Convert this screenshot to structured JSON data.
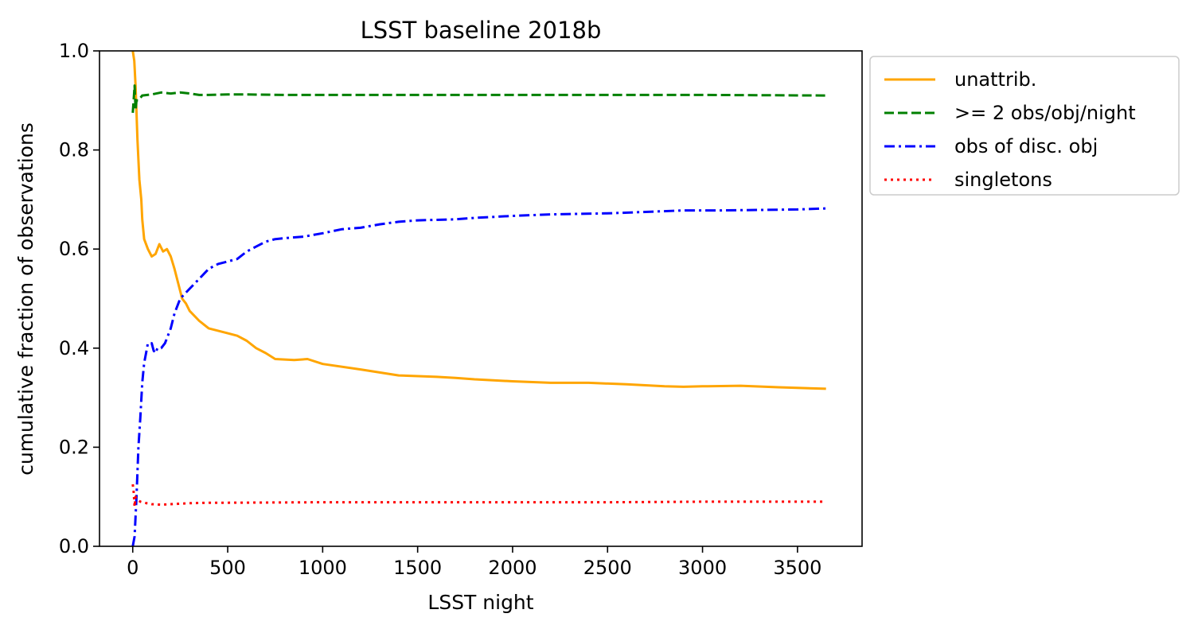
{
  "chart_data": {
    "type": "line",
    "title": "LSST baseline 2018b",
    "xlabel": "LSST night",
    "ylabel": "cumulative fraction of observations",
    "xlim": [
      -175,
      3840
    ],
    "ylim": [
      0.0,
      1.0
    ],
    "xticks": [
      0,
      500,
      1000,
      1500,
      2000,
      2500,
      3000,
      3500
    ],
    "yticks": [
      0.0,
      0.2,
      0.4,
      0.6,
      0.8,
      1.0
    ],
    "xtick_labels": [
      "0",
      "500",
      "1000",
      "1500",
      "2000",
      "2500",
      "3000",
      "3500"
    ],
    "ytick_labels": [
      "0.0",
      "0.2",
      "0.4",
      "0.6",
      "0.8",
      "1.0"
    ],
    "grid": false,
    "legend_position": "outside-top-right",
    "series": [
      {
        "name": "unattrib.",
        "color": "#ffa500",
        "style": "solid",
        "points": [
          [
            0,
            1.0
          ],
          [
            8,
            0.98
          ],
          [
            15,
            0.93
          ],
          [
            25,
            0.82
          ],
          [
            35,
            0.74
          ],
          [
            45,
            0.7
          ],
          [
            50,
            0.66
          ],
          [
            60,
            0.62
          ],
          [
            80,
            0.6
          ],
          [
            100,
            0.585
          ],
          [
            120,
            0.59
          ],
          [
            140,
            0.61
          ],
          [
            160,
            0.595
          ],
          [
            180,
            0.6
          ],
          [
            200,
            0.585
          ],
          [
            220,
            0.56
          ],
          [
            240,
            0.53
          ],
          [
            260,
            0.5
          ],
          [
            280,
            0.49
          ],
          [
            300,
            0.475
          ],
          [
            350,
            0.455
          ],
          [
            400,
            0.44
          ],
          [
            500,
            0.43
          ],
          [
            550,
            0.425
          ],
          [
            600,
            0.415
          ],
          [
            650,
            0.4
          ],
          [
            700,
            0.39
          ],
          [
            750,
            0.378
          ],
          [
            850,
            0.376
          ],
          [
            920,
            0.378
          ],
          [
            1000,
            0.368
          ],
          [
            1200,
            0.357
          ],
          [
            1400,
            0.345
          ],
          [
            1600,
            0.342
          ],
          [
            1700,
            0.34
          ],
          [
            1800,
            0.337
          ],
          [
            2000,
            0.333
          ],
          [
            2200,
            0.33
          ],
          [
            2400,
            0.33
          ],
          [
            2600,
            0.327
          ],
          [
            2800,
            0.323
          ],
          [
            2900,
            0.322
          ],
          [
            3000,
            0.323
          ],
          [
            3200,
            0.324
          ],
          [
            3400,
            0.321
          ],
          [
            3650,
            0.318
          ]
        ]
      },
      {
        "name": ">= 2 obs/obj/night",
        "color": "#008000",
        "style": "dashed",
        "points": [
          [
            0,
            0.875
          ],
          [
            5,
            0.9
          ],
          [
            10,
            0.93
          ],
          [
            15,
            0.88
          ],
          [
            20,
            0.9
          ],
          [
            30,
            0.9
          ],
          [
            50,
            0.91
          ],
          [
            100,
            0.912
          ],
          [
            150,
            0.916
          ],
          [
            200,
            0.914
          ],
          [
            250,
            0.916
          ],
          [
            300,
            0.914
          ],
          [
            350,
            0.911
          ],
          [
            400,
            0.911
          ],
          [
            500,
            0.912
          ],
          [
            600,
            0.912
          ],
          [
            800,
            0.911
          ],
          [
            1000,
            0.911
          ],
          [
            1500,
            0.911
          ],
          [
            2000,
            0.911
          ],
          [
            2500,
            0.911
          ],
          [
            3000,
            0.911
          ],
          [
            3650,
            0.91
          ]
        ]
      },
      {
        "name": "obs of disc. obj",
        "color": "#0000ff",
        "style": "dashdot",
        "points": [
          [
            0,
            0.0
          ],
          [
            10,
            0.02
          ],
          [
            20,
            0.1
          ],
          [
            30,
            0.2
          ],
          [
            40,
            0.26
          ],
          [
            50,
            0.33
          ],
          [
            60,
            0.37
          ],
          [
            70,
            0.39
          ],
          [
            80,
            0.41
          ],
          [
            100,
            0.41
          ],
          [
            110,
            0.395
          ],
          [
            120,
            0.39
          ],
          [
            130,
            0.4
          ],
          [
            150,
            0.4
          ],
          [
            170,
            0.41
          ],
          [
            200,
            0.44
          ],
          [
            220,
            0.47
          ],
          [
            250,
            0.5
          ],
          [
            300,
            0.52
          ],
          [
            350,
            0.54
          ],
          [
            400,
            0.56
          ],
          [
            450,
            0.57
          ],
          [
            500,
            0.575
          ],
          [
            550,
            0.58
          ],
          [
            600,
            0.595
          ],
          [
            650,
            0.605
          ],
          [
            700,
            0.615
          ],
          [
            750,
            0.62
          ],
          [
            800,
            0.622
          ],
          [
            900,
            0.625
          ],
          [
            1000,
            0.632
          ],
          [
            1100,
            0.64
          ],
          [
            1200,
            0.643
          ],
          [
            1300,
            0.65
          ],
          [
            1400,
            0.655
          ],
          [
            1500,
            0.658
          ],
          [
            1700,
            0.66
          ],
          [
            1800,
            0.663
          ],
          [
            2000,
            0.667
          ],
          [
            2200,
            0.67
          ],
          [
            2500,
            0.672
          ],
          [
            2700,
            0.675
          ],
          [
            2900,
            0.678
          ],
          [
            3100,
            0.678
          ],
          [
            3300,
            0.679
          ],
          [
            3500,
            0.68
          ],
          [
            3650,
            0.682
          ]
        ]
      },
      {
        "name": "singletons",
        "color": "#ff0000",
        "style": "dotted",
        "points": [
          [
            0,
            0.125
          ],
          [
            5,
            0.11
          ],
          [
            10,
            0.08
          ],
          [
            15,
            0.1
          ],
          [
            20,
            0.095
          ],
          [
            40,
            0.09
          ],
          [
            60,
            0.088
          ],
          [
            100,
            0.085
          ],
          [
            150,
            0.084
          ],
          [
            200,
            0.085
          ],
          [
            250,
            0.086
          ],
          [
            300,
            0.087
          ],
          [
            400,
            0.088
          ],
          [
            500,
            0.088
          ],
          [
            1000,
            0.089
          ],
          [
            1500,
            0.089
          ],
          [
            2000,
            0.089
          ],
          [
            2500,
            0.089
          ],
          [
            3000,
            0.09
          ],
          [
            3650,
            0.09
          ]
        ]
      }
    ]
  }
}
